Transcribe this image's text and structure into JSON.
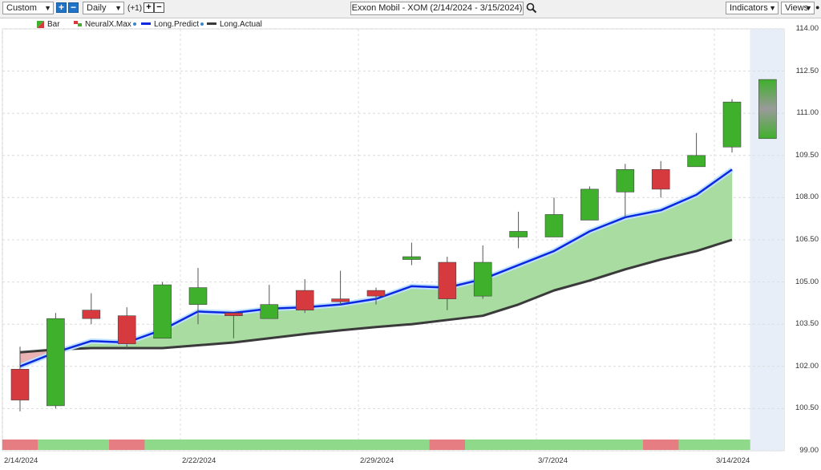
{
  "toolbar": {
    "template_select": "Custom",
    "period_select": "Daily",
    "period_offset": "(+1)",
    "chart_title": "Exxon Mobil - XOM (2/14/2024 - 3/15/2024)",
    "indicators_label": "Indicators",
    "views_label": "Views"
  },
  "legend": [
    {
      "label": "Bar",
      "icon": "bar-legend-icon"
    },
    {
      "label": "NeuralX.Max",
      "icon": "neuralx-legend-icon"
    },
    {
      "label": "Long.Predict",
      "icon": "long-predict-legend-icon"
    },
    {
      "label": "Long.Actual",
      "icon": "long-actual-legend-icon"
    }
  ],
  "colors": {
    "up": "#3fb02c",
    "down": "#d63a3e",
    "predict": "#0a28e0",
    "actual": "#3a3a3a",
    "fill_green": "#a8dca0",
    "fill_red": "#e9b3b3",
    "strip_green": "#8fd98a",
    "strip_red": "#e67d82",
    "forecast_band": "#e7eef7"
  },
  "chart_data": {
    "type": "candlestick",
    "title": "Exxon Mobil - XOM (2/14/2024 - 3/15/2024)",
    "ylim": [
      99.0,
      114.0
    ],
    "y_ticks": [
      "114.00",
      "112.50",
      "111.00",
      "109.50",
      "108.00",
      "106.50",
      "105.00",
      "103.50",
      "102.00",
      "100.50",
      "99.00"
    ],
    "x_labels": [
      {
        "index": 0,
        "label": "2/14/2024"
      },
      {
        "index": 5,
        "label": "2/22/2024"
      },
      {
        "index": 10,
        "label": "2/29/2024"
      },
      {
        "index": 15,
        "label": "3/7/2024"
      },
      {
        "index": 20,
        "label": "3/14/2024"
      }
    ],
    "candles": [
      {
        "o": 101.9,
        "h": 102.7,
        "l": 100.4,
        "c": 100.8
      },
      {
        "o": 100.6,
        "h": 103.9,
        "l": 100.5,
        "c": 103.7
      },
      {
        "o": 104.0,
        "h": 104.6,
        "l": 103.5,
        "c": 103.7
      },
      {
        "o": 103.8,
        "h": 104.1,
        "l": 102.6,
        "c": 102.8
      },
      {
        "o": 103.0,
        "h": 105.0,
        "l": 103.0,
        "c": 104.9
      },
      {
        "o": 104.2,
        "h": 105.5,
        "l": 103.5,
        "c": 104.8
      },
      {
        "o": 103.9,
        "h": 103.9,
        "l": 103.0,
        "c": 103.8
      },
      {
        "o": 103.7,
        "h": 104.9,
        "l": 103.7,
        "c": 104.2
      },
      {
        "o": 104.7,
        "h": 105.1,
        "l": 103.9,
        "c": 104.0
      },
      {
        "o": 104.4,
        "h": 105.4,
        "l": 104.2,
        "c": 104.3
      },
      {
        "o": 104.7,
        "h": 104.8,
        "l": 104.2,
        "c": 104.5
      },
      {
        "o": 105.8,
        "h": 106.4,
        "l": 105.6,
        "c": 105.9
      },
      {
        "o": 105.7,
        "h": 105.9,
        "l": 104.0,
        "c": 104.4
      },
      {
        "o": 104.5,
        "h": 106.3,
        "l": 104.4,
        "c": 105.7
      },
      {
        "o": 106.6,
        "h": 107.5,
        "l": 106.2,
        "c": 106.8
      },
      {
        "o": 106.6,
        "h": 108.0,
        "l": 106.6,
        "c": 107.4
      },
      {
        "o": 107.2,
        "h": 108.4,
        "l": 107.2,
        "c": 108.3
      },
      {
        "o": 108.2,
        "h": 109.2,
        "l": 107.3,
        "c": 109.0
      },
      {
        "o": 109.0,
        "h": 109.3,
        "l": 108.0,
        "c": 108.3
      },
      {
        "o": 109.1,
        "h": 110.3,
        "l": 109.1,
        "c": 109.5
      },
      {
        "o": 109.8,
        "h": 111.5,
        "l": 109.6,
        "c": 111.4
      },
      {
        "o": 110.1,
        "h": 112.2,
        "l": 110.1,
        "c": 112.2,
        "forecast": true
      }
    ],
    "series": [
      {
        "name": "Long.Predict",
        "values": [
          102.0,
          102.5,
          102.9,
          102.85,
          103.3,
          103.95,
          103.9,
          104.05,
          104.1,
          104.2,
          104.4,
          104.85,
          104.8,
          105.1,
          105.6,
          106.1,
          106.8,
          107.3,
          107.55,
          108.1,
          109.0
        ]
      },
      {
        "name": "Long.Actual",
        "values": [
          102.5,
          102.6,
          102.65,
          102.65,
          102.65,
          102.75,
          102.85,
          103.0,
          103.15,
          103.28,
          103.4,
          103.5,
          103.65,
          103.8,
          104.2,
          104.7,
          105.05,
          105.45,
          105.8,
          106.1,
          106.5
        ]
      }
    ],
    "signal_strip": [
      "red",
      "green",
      "green",
      "red",
      "green",
      "green",
      "green",
      "green",
      "green",
      "green",
      "green",
      "green",
      "red",
      "green",
      "green",
      "green",
      "green",
      "green",
      "red",
      "green",
      "green"
    ]
  }
}
